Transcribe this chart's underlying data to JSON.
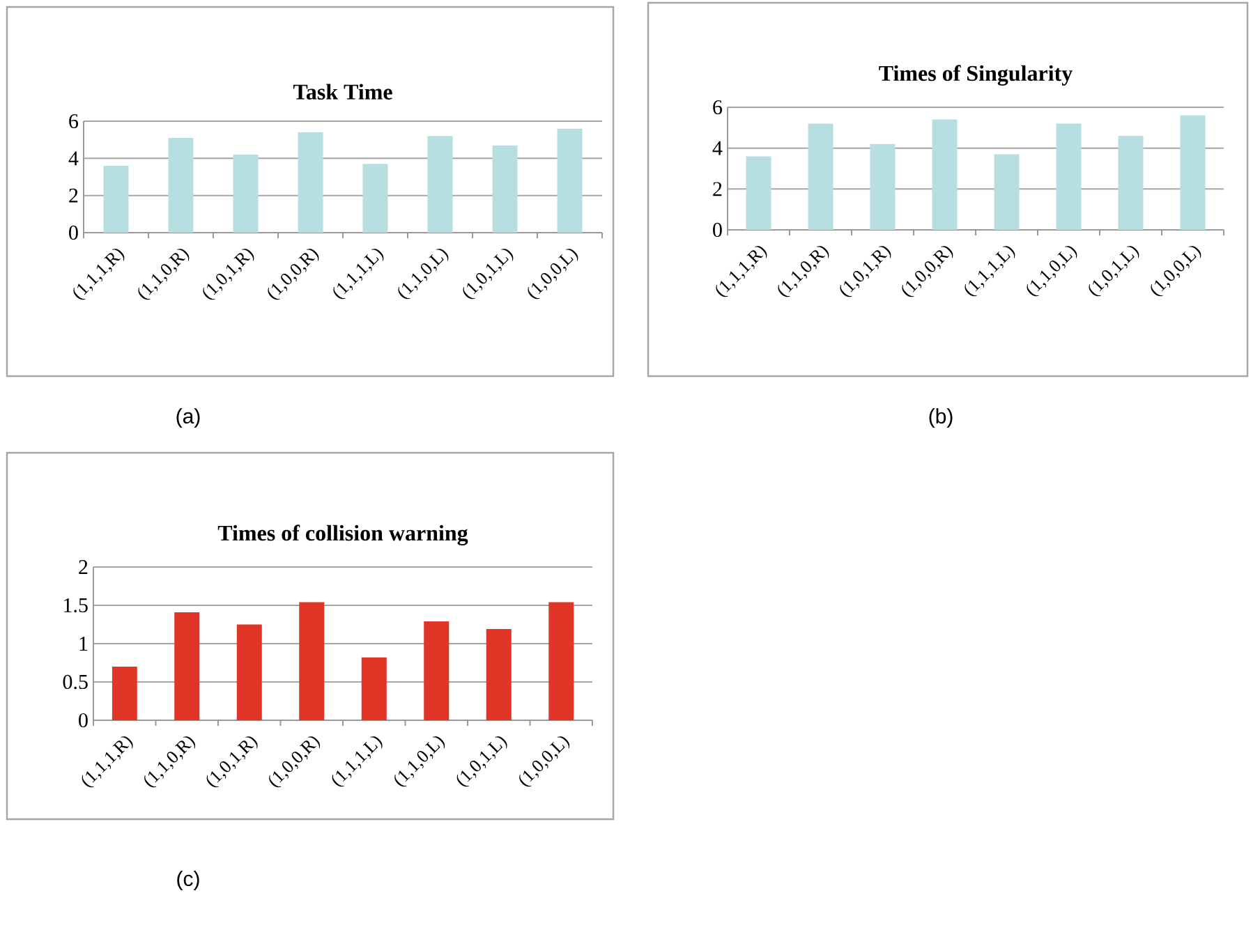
{
  "chart_data": [
    {
      "type": "bar",
      "title": "Task Time",
      "categories": [
        "(1,1,1,R)",
        "(1,1,0,R)",
        "(1,0,1,R)",
        "(1,0,0,R)",
        "(1,1,1,L)",
        "(1,1,0,L)",
        "(1,0,1,L)",
        "(1,0,0,L)"
      ],
      "values": [
        3.6,
        5.1,
        4.2,
        5.4,
        3.7,
        5.2,
        4.7,
        5.6
      ],
      "color": "#b7dee0",
      "ylim": [
        0,
        6
      ],
      "yticks": [
        0,
        2,
        4,
        6
      ],
      "grid": "y",
      "annotations": [
        "(a)"
      ]
    },
    {
      "type": "bar",
      "title": "Times of Singularity",
      "categories": [
        "(1,1,1,R)",
        "(1,1,0,R)",
        "(1,0,1,R)",
        "(1,0,0,R)",
        "(1,1,1,L)",
        "(1,1,0,L)",
        "(1,0,1,L)",
        "(1,0,0,L)"
      ],
      "values": [
        3.6,
        5.2,
        4.2,
        5.4,
        3.7,
        5.2,
        4.6,
        5.6
      ],
      "color": "#b7dee0",
      "ylim": [
        0,
        6
      ],
      "yticks": [
        0,
        2,
        4,
        6
      ],
      "grid": "y",
      "annotations": [
        "(b)"
      ]
    },
    {
      "type": "bar",
      "title": "Times of collision warning",
      "categories": [
        "(1,1,1,R)",
        "(1,1,0,R)",
        "(1,0,1,R)",
        "(1,0,0,R)",
        "(1,1,1,L)",
        "(1,1,0,L)",
        "(1,0,1,L)",
        "(1,0,0,L)"
      ],
      "values": [
        0.7,
        1.41,
        1.25,
        1.54,
        0.82,
        1.29,
        1.19,
        1.54
      ],
      "color": "#e03527",
      "ylim": [
        0,
        2
      ],
      "yticks": [
        0,
        0.5,
        1,
        1.5,
        2
      ],
      "grid": "y",
      "annotations": [
        "(c)"
      ]
    }
  ]
}
